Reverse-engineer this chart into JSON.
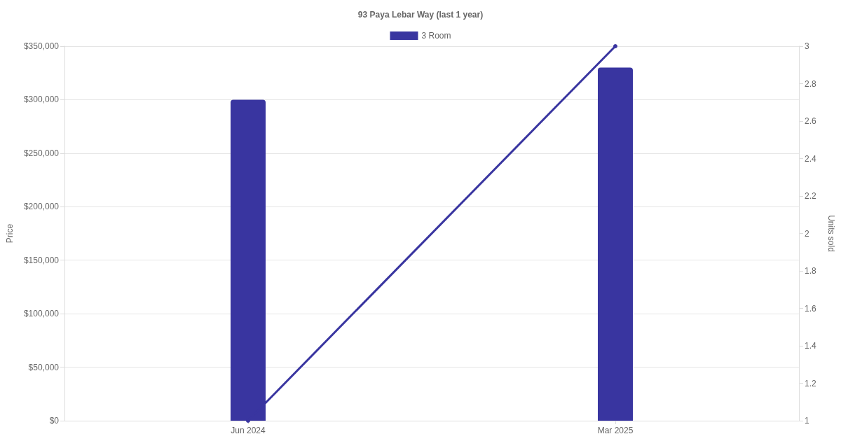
{
  "chart_data": {
    "type": "bar",
    "title": "93 Paya Lebar Way (last 1 year)",
    "ylabel": "Price",
    "y2label": "Units sold",
    "categories": [
      "Jun 2024",
      "Mar 2025"
    ],
    "series": [
      {
        "name": "3 Room",
        "color": "#3935a0",
        "values": [
          300000,
          330000
        ]
      },
      {
        "type": "line",
        "axis": "y2",
        "color": "#3935a0",
        "values": [
          1,
          3
        ]
      }
    ],
    "ylim": [
      0,
      350000
    ],
    "yticks": [
      {
        "value": 0,
        "label": "$0"
      },
      {
        "value": 50000,
        "label": "$50,000"
      },
      {
        "value": 100000,
        "label": "$100,000"
      },
      {
        "value": 150000,
        "label": "$150,000"
      },
      {
        "value": 200000,
        "label": "$200,000"
      },
      {
        "value": 250000,
        "label": "$250,000"
      },
      {
        "value": 300000,
        "label": "$300,000"
      },
      {
        "value": 350000,
        "label": "$350,000"
      }
    ],
    "y2lim": [
      1,
      3
    ],
    "y2ticks": [
      1,
      1.2,
      1.4,
      1.6,
      1.8,
      2,
      2.2,
      2.4,
      2.6,
      2.8,
      3
    ],
    "grid": "y",
    "legend": "top",
    "marker": "circle",
    "line_style": "solid"
  }
}
